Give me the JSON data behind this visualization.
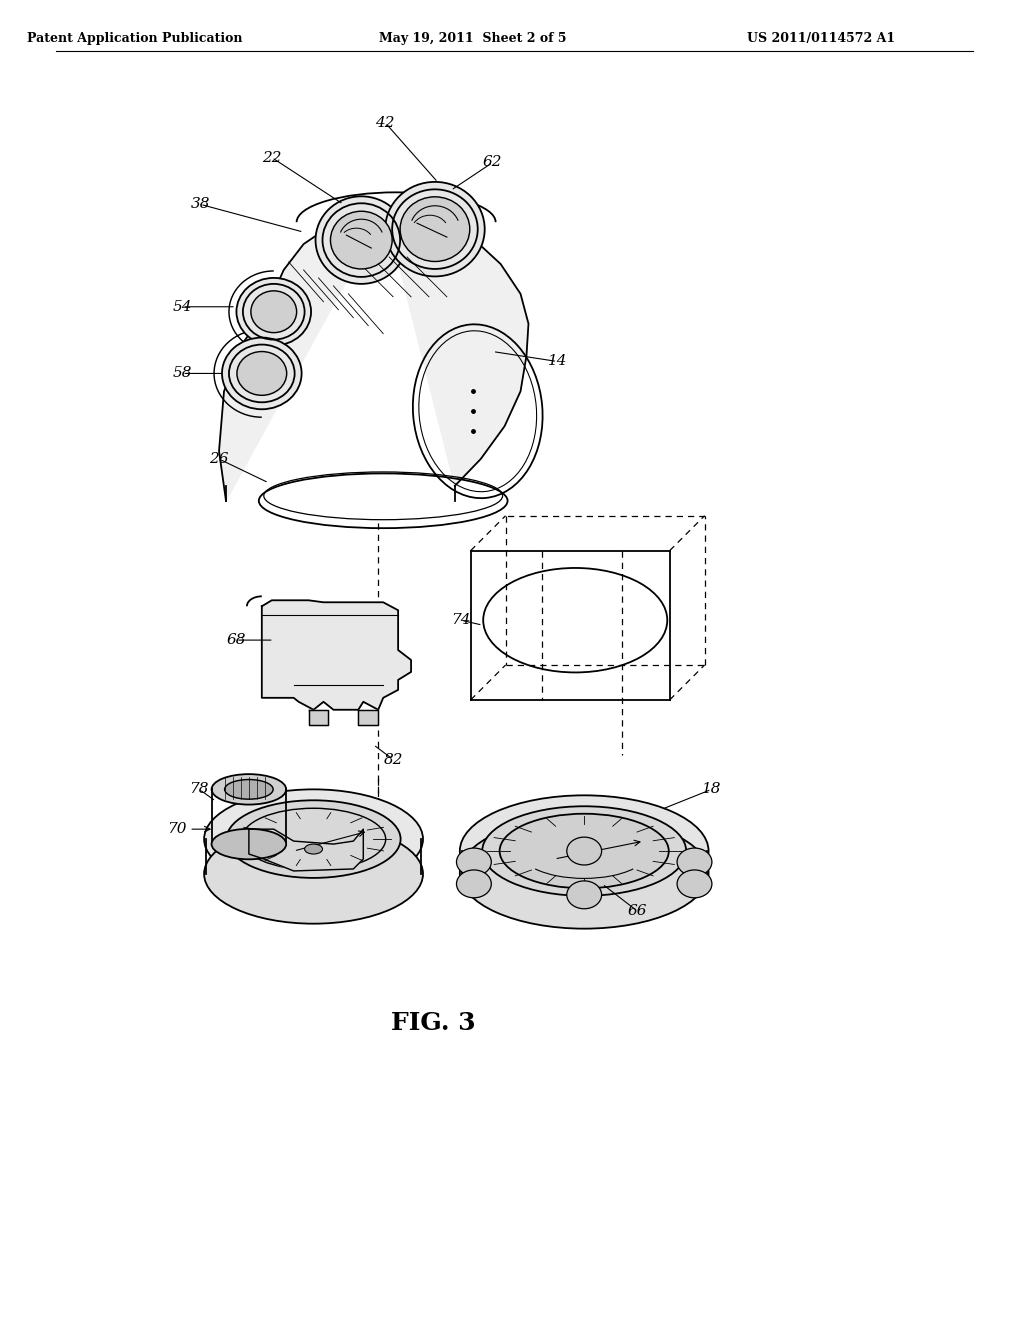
{
  "background_color": "#ffffff",
  "header_left": "Patent Application Publication",
  "header_center": "May 19, 2011  Sheet 2 of 5",
  "header_right": "US 2011/0114572 A1",
  "figure_label": "FIG. 3"
}
